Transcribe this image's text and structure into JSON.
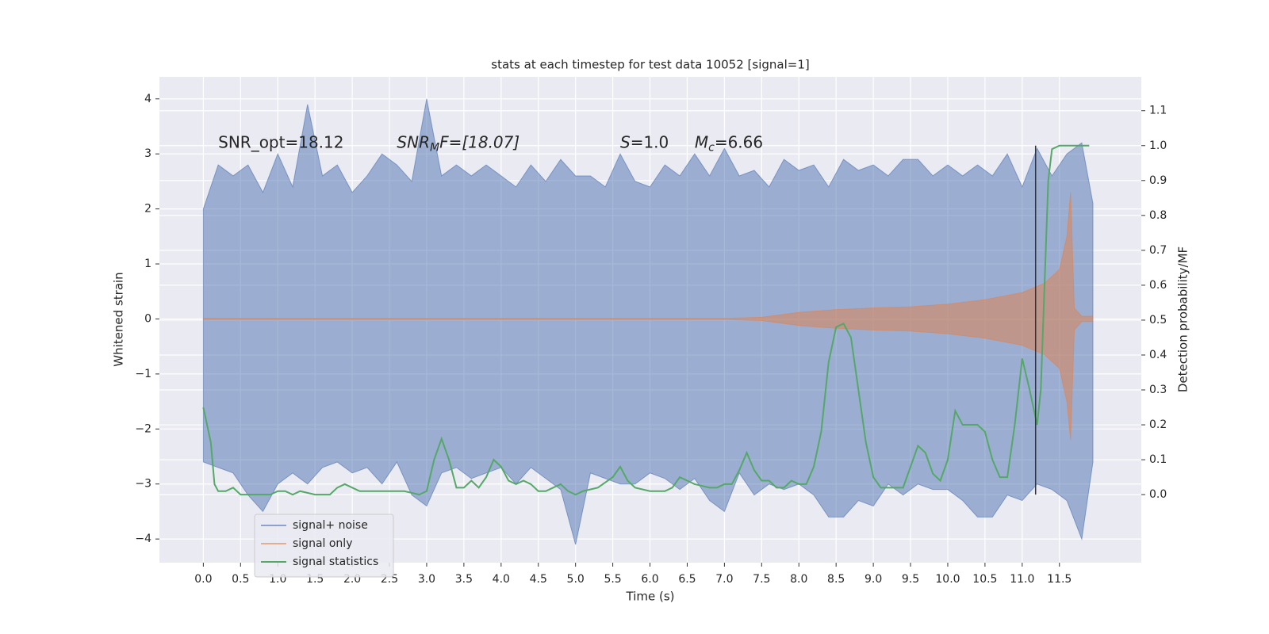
{
  "chart_data": {
    "type": "line",
    "title": "stats at each timestep for test data 10052 [signal=1]",
    "x_label": "Time (s)",
    "y_label": "Whitened strain",
    "y2_label": "Detection probability/MF",
    "xlim": [
      -0.59,
      12.6
    ],
    "ylim": [
      -4.43,
      4.4
    ],
    "y2lim": [
      -0.195,
      1.197
    ],
    "grid": true,
    "legend_loc": "lower left",
    "xticks": [
      {
        "value": 0.0,
        "label": "0.0"
      },
      {
        "value": 0.5,
        "label": "0.5"
      },
      {
        "value": 1.0,
        "label": "1.0"
      },
      {
        "value": 1.5,
        "label": "1.5"
      },
      {
        "value": 2.0,
        "label": "2.0"
      },
      {
        "value": 2.5,
        "label": "2.5"
      },
      {
        "value": 3.0,
        "label": "3.0"
      },
      {
        "value": 3.5,
        "label": "3.5"
      },
      {
        "value": 4.0,
        "label": "4.0"
      },
      {
        "value": 4.5,
        "label": "4.5"
      },
      {
        "value": 5.0,
        "label": "5.0"
      },
      {
        "value": 5.5,
        "label": "5.5"
      },
      {
        "value": 6.0,
        "label": "6.0"
      },
      {
        "value": 6.5,
        "label": "6.5"
      },
      {
        "value": 7.0,
        "label": "7.0"
      },
      {
        "value": 7.5,
        "label": "7.5"
      },
      {
        "value": 8.0,
        "label": "8.0"
      },
      {
        "value": 8.5,
        "label": "8.5"
      },
      {
        "value": 9.0,
        "label": "9.0"
      },
      {
        "value": 9.5,
        "label": "9.5"
      },
      {
        "value": 10.0,
        "label": "10.0"
      },
      {
        "value": 10.5,
        "label": "10.5"
      },
      {
        "value": 11.0,
        "label": "11.0"
      },
      {
        "value": 11.5,
        "label": "11.5"
      }
    ],
    "yticks": [
      {
        "value": -4,
        "label": "−4"
      },
      {
        "value": -3,
        "label": "−3"
      },
      {
        "value": -2,
        "label": "−2"
      },
      {
        "value": -1,
        "label": "−1"
      },
      0,
      1,
      2,
      3,
      4
    ],
    "y2ticks": [
      {
        "value": 0.0,
        "label": "0.0"
      },
      {
        "value": 0.1,
        "label": "0.1"
      },
      {
        "value": 0.2,
        "label": "0.2"
      },
      {
        "value": 0.3,
        "label": "0.3"
      },
      {
        "value": 0.4,
        "label": "0.4"
      },
      {
        "value": 0.5,
        "label": "0.5"
      },
      {
        "value": 0.6,
        "label": "0.6"
      },
      {
        "value": 0.7,
        "label": "0.7"
      },
      {
        "value": 0.8,
        "label": "0.8"
      },
      {
        "value": 0.9,
        "label": "0.9"
      },
      {
        "value": 1.0,
        "label": "1.0"
      },
      {
        "value": 1.1,
        "label": "1.1"
      }
    ],
    "annotations": [
      {
        "parts": [
          "SNR_opt=18.12"
        ],
        "x": 0.2,
        "y": 3.2
      },
      {
        "parts": [
          "SNR",
          "M",
          "F=[18.07]"
        ],
        "x": 2.6,
        "y": 3.2
      },
      {
        "parts": [
          "S",
          "=1.0"
        ],
        "x": 5.6,
        "y": 3.2
      },
      {
        "parts": [
          "M",
          "c",
          "=6.66"
        ],
        "x": 6.6,
        "y": 3.2
      }
    ],
    "series": [
      {
        "name": "signal+ noise",
        "color": "#4c72b0",
        "x": [
          0,
          0.2,
          0.4,
          0.6,
          0.8,
          1.0,
          1.2,
          1.4,
          1.6,
          1.8,
          2.0,
          2.2,
          2.4,
          2.6,
          2.8,
          3.0,
          3.2,
          3.4,
          3.6,
          3.8,
          4.0,
          4.2,
          4.4,
          4.6,
          4.8,
          5.0,
          5.2,
          5.4,
          5.6,
          5.8,
          6.0,
          6.2,
          6.4,
          6.6,
          6.8,
          7.0,
          7.2,
          7.4,
          7.6,
          7.8,
          8.0,
          8.2,
          8.4,
          8.6,
          8.8,
          9.0,
          9.2,
          9.4,
          9.6,
          9.8,
          10.0,
          10.2,
          10.4,
          10.6,
          10.8,
          11.0,
          11.2,
          11.4,
          11.6,
          11.8,
          11.95
        ],
        "upper": [
          2.0,
          2.8,
          2.6,
          2.8,
          2.3,
          3.0,
          2.4,
          3.9,
          2.6,
          2.8,
          2.3,
          2.6,
          3.0,
          2.8,
          2.5,
          4.0,
          2.6,
          2.8,
          2.6,
          2.8,
          2.6,
          2.4,
          2.8,
          2.5,
          2.9,
          2.6,
          2.6,
          2.4,
          3.0,
          2.5,
          2.4,
          2.8,
          2.6,
          3.0,
          2.6,
          3.1,
          2.6,
          2.7,
          2.4,
          2.9,
          2.7,
          2.8,
          2.4,
          2.9,
          2.7,
          2.8,
          2.6,
          2.9,
          2.9,
          2.6,
          2.8,
          2.6,
          2.8,
          2.6,
          3.0,
          2.4,
          3.1,
          2.6,
          3.0,
          3.2,
          2.1
        ],
        "lower": [
          -2.6,
          -2.7,
          -2.8,
          -3.2,
          -3.5,
          -3.0,
          -2.8,
          -3.0,
          -2.7,
          -2.6,
          -2.8,
          -2.7,
          -3.0,
          -2.6,
          -3.2,
          -3.4,
          -2.8,
          -2.7,
          -2.9,
          -2.8,
          -2.7,
          -3.0,
          -2.7,
          -2.9,
          -3.1,
          -4.1,
          -2.8,
          -2.9,
          -3.0,
          -3.0,
          -2.8,
          -2.9,
          -3.1,
          -2.9,
          -3.3,
          -3.5,
          -2.8,
          -3.2,
          -3.0,
          -3.1,
          -3.0,
          -3.2,
          -3.6,
          -3.6,
          -3.3,
          -3.4,
          -3.0,
          -3.2,
          -3.0,
          -3.1,
          -3.1,
          -3.3,
          -3.6,
          -3.6,
          -3.2,
          -3.3,
          -3.0,
          -3.1,
          -3.3,
          -4.0,
          -2.6
        ]
      },
      {
        "name": "signal only",
        "color": "#dd8452",
        "x": [
          0,
          7.0,
          7.5,
          8.0,
          8.5,
          9.0,
          9.5,
          10.0,
          10.5,
          11.0,
          11.3,
          11.5,
          11.6,
          11.65,
          11.7,
          11.8,
          11.95
        ],
        "upper": [
          0.01,
          0.01,
          0.03,
          0.12,
          0.17,
          0.2,
          0.22,
          0.27,
          0.35,
          0.48,
          0.65,
          0.9,
          1.5,
          2.3,
          0.2,
          0.05,
          0.05
        ],
        "lower": [
          -0.01,
          -0.01,
          -0.03,
          -0.12,
          -0.17,
          -0.2,
          -0.22,
          -0.27,
          -0.35,
          -0.48,
          -0.65,
          -0.9,
          -1.5,
          -2.2,
          -0.2,
          -0.05,
          -0.05
        ]
      },
      {
        "name": "signal statistics",
        "color": "#55a868",
        "axis": "y2",
        "x": [
          0,
          0.1,
          0.15,
          0.2,
          0.3,
          0.4,
          0.5,
          0.7,
          0.9,
          1.0,
          1.1,
          1.2,
          1.3,
          1.5,
          1.7,
          1.8,
          1.9,
          2.0,
          2.1,
          2.3,
          2.5,
          2.7,
          2.9,
          3.0,
          3.1,
          3.2,
          3.3,
          3.4,
          3.5,
          3.6,
          3.7,
          3.8,
          3.9,
          4.0,
          4.1,
          4.2,
          4.3,
          4.4,
          4.5,
          4.6,
          4.7,
          4.8,
          4.9,
          5.0,
          5.1,
          5.3,
          5.5,
          5.6,
          5.7,
          5.8,
          6.0,
          6.2,
          6.3,
          6.4,
          6.5,
          6.6,
          6.8,
          6.9,
          7.0,
          7.1,
          7.2,
          7.3,
          7.4,
          7.5,
          7.6,
          7.7,
          7.8,
          7.9,
          8.0,
          8.1,
          8.2,
          8.3,
          8.4,
          8.5,
          8.6,
          8.7,
          8.8,
          8.9,
          9.0,
          9.1,
          9.2,
          9.3,
          9.4,
          9.5,
          9.6,
          9.7,
          9.8,
          9.9,
          10.0,
          10.1,
          10.2,
          10.3,
          10.4,
          10.5,
          10.6,
          10.7,
          10.8,
          10.9,
          11.0,
          11.1,
          11.2,
          11.25,
          11.3,
          11.35,
          11.4,
          11.5,
          11.6,
          11.9
        ],
        "values": [
          0.25,
          0.15,
          0.03,
          0.01,
          0.01,
          0.02,
          0.0,
          0.0,
          0.0,
          0.01,
          0.01,
          0.0,
          0.01,
          0.0,
          0.0,
          0.02,
          0.03,
          0.02,
          0.01,
          0.01,
          0.01,
          0.01,
          0.0,
          0.01,
          0.1,
          0.16,
          0.1,
          0.02,
          0.02,
          0.04,
          0.02,
          0.05,
          0.1,
          0.08,
          0.04,
          0.03,
          0.04,
          0.03,
          0.01,
          0.01,
          0.02,
          0.03,
          0.01,
          0.0,
          0.01,
          0.02,
          0.05,
          0.08,
          0.04,
          0.02,
          0.01,
          0.01,
          0.02,
          0.05,
          0.04,
          0.03,
          0.02,
          0.02,
          0.03,
          0.03,
          0.07,
          0.12,
          0.07,
          0.04,
          0.04,
          0.02,
          0.02,
          0.04,
          0.03,
          0.03,
          0.08,
          0.18,
          0.38,
          0.48,
          0.49,
          0.45,
          0.3,
          0.15,
          0.05,
          0.02,
          0.02,
          0.02,
          0.02,
          0.08,
          0.14,
          0.12,
          0.06,
          0.04,
          0.1,
          0.24,
          0.2,
          0.2,
          0.2,
          0.18,
          0.1,
          0.05,
          0.05,
          0.2,
          0.39,
          0.3,
          0.2,
          0.3,
          0.6,
          0.9,
          0.99,
          1.0,
          1.0,
          1.0
        ]
      }
    ],
    "vlines": [
      {
        "x": 11.18,
        "ymin": 0.0,
        "ymax": 1.0,
        "color": "#333333",
        "axis": "y2"
      }
    ]
  }
}
